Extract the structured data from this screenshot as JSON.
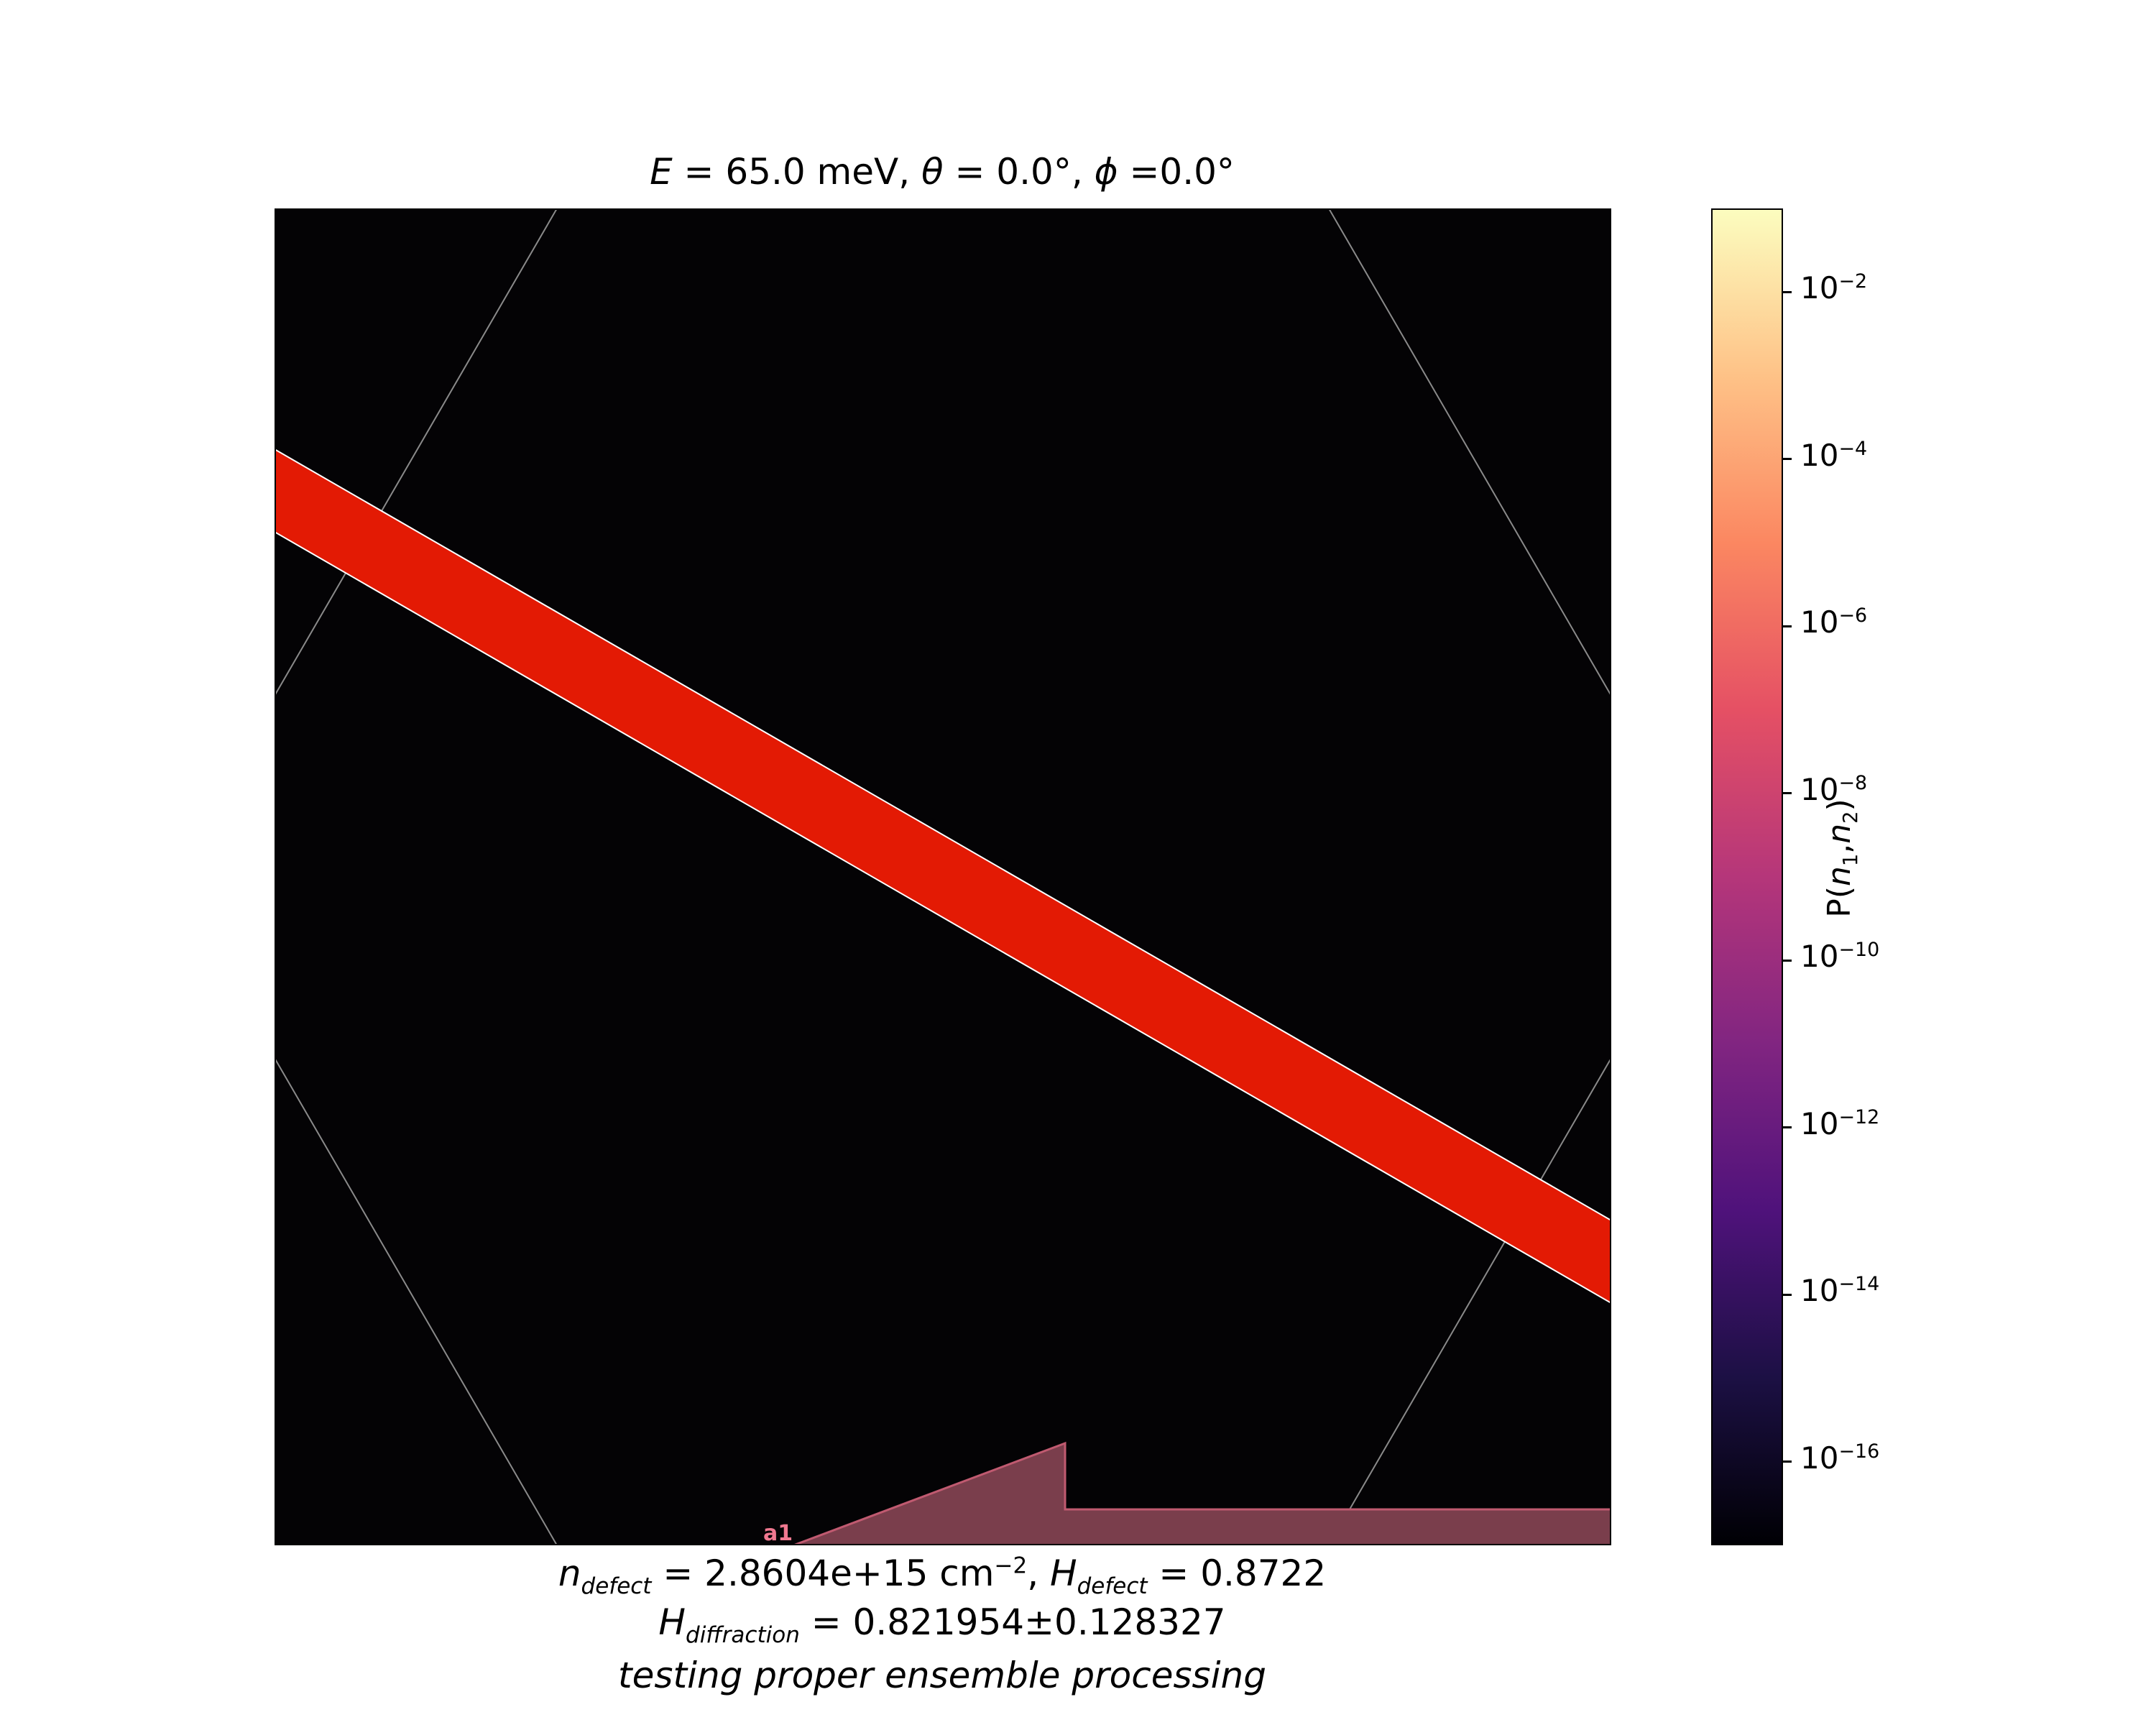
{
  "title": {
    "prefix_var": "E",
    "energy": " = 65.0 meV, ",
    "theta_var": "θ",
    "theta_val": " = 0.0°, ",
    "phi_var": "ϕ",
    "phi_val": " =0.0°"
  },
  "footer": {
    "n_var": "n",
    "n_sub": "defect",
    "n_val": " = 2.8604e+15 cm",
    "n_exp": "−2",
    "h_sep": ", ",
    "h_var": "H",
    "h_sub": "defect",
    "h_val": " = 0.8722",
    "hd_var": "H",
    "hd_sub": "diffraction",
    "hd_val": " = 0.821954±0.128327",
    "note": "testing proper ensemble processing"
  },
  "colorbar": {
    "label_p": "P(",
    "label_n1": "n",
    "label_s1": "1",
    "label_comma": ",",
    "label_n2": "n",
    "label_s2": "2",
    "label_close": ")",
    "colormap": "magma",
    "scale": "log",
    "range": [
      1e-17,
      0.1
    ],
    "ticks": [
      {
        "base": "10",
        "exp": "−2",
        "value": -2
      },
      {
        "base": "10",
        "exp": "−4",
        "value": -4
      },
      {
        "base": "10",
        "exp": "−6",
        "value": -6
      },
      {
        "base": "10",
        "exp": "−8",
        "value": -8
      },
      {
        "base": "10",
        "exp": "−10",
        "value": -10
      },
      {
        "base": "10",
        "exp": "−12",
        "value": -12
      },
      {
        "base": "10",
        "exp": "−14",
        "value": -14
      },
      {
        "base": "10",
        "exp": "−16",
        "value": -16
      }
    ]
  },
  "chart_data": {
    "type": "heatmap",
    "background_color": "#040305",
    "band_color": "#e31a04",
    "gridline_color": "#888888",
    "patch_color": "#7a3e4c",
    "patch_label": "a1",
    "patch_label_color": "#f07890",
    "axes_ticks_visible": false,
    "legend": "colorbar-right"
  }
}
